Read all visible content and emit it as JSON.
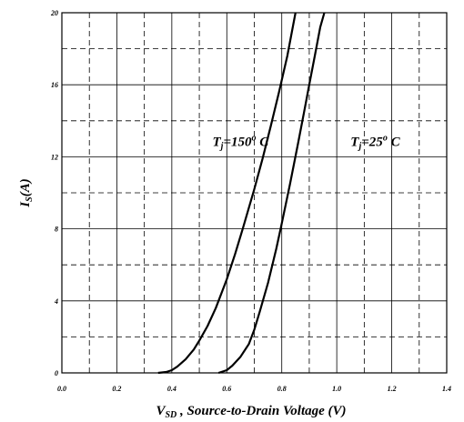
{
  "chart_data": {
    "type": "line",
    "xlabel_main": "V",
    "xlabel_sub": "SD",
    "xlabel_rest": " , Source-to-Drain Voltage (V)",
    "ylabel_main": "I",
    "ylabel_sub": "S",
    "ylabel_rest": "(A)",
    "xlim": [
      0,
      1.4
    ],
    "ylim": [
      0,
      20
    ],
    "x_major_ticks": [
      0,
      0.2,
      0.4,
      0.6,
      0.8,
      1.0,
      1.2,
      1.4
    ],
    "x_tick_labels": [
      "0.0",
      "0.2",
      "0.4",
      "0.6",
      "0.8",
      "1.0",
      "1.2",
      "1.4"
    ],
    "x_minor_ticks": [
      0.1,
      0.3,
      0.5,
      0.7,
      0.9,
      1.1,
      1.3
    ],
    "y_major_ticks": [
      0,
      4,
      8,
      12,
      16,
      20
    ],
    "y_tick_labels": [
      "0",
      "4",
      "8",
      "12",
      "16",
      "20"
    ],
    "y_minor_ticks": [
      2,
      6,
      10,
      14,
      18
    ],
    "grid": true,
    "line_color": "#000000",
    "annotations": [
      {
        "main": "T",
        "sub": "j",
        "rest": "=150",
        "sup": "o",
        "tail": " C",
        "x": 0.65,
        "y": 12.6
      },
      {
        "main": "T",
        "sub": "j",
        "rest": "=25",
        "sup": "o",
        "tail": " C",
        "x": 1.14,
        "y": 12.6
      }
    ],
    "series": [
      {
        "x": [
          0.35,
          0.38,
          0.4,
          0.42,
          0.45,
          0.48,
          0.5,
          0.53,
          0.56,
          0.6,
          0.63,
          0.66,
          0.7,
          0.73,
          0.76,
          0.79,
          0.82,
          0.85
        ],
        "y": [
          0,
          0.05,
          0.15,
          0.35,
          0.75,
          1.3,
          1.8,
          2.6,
          3.6,
          5.2,
          6.6,
          8.1,
          10.2,
          11.9,
          13.7,
          15.6,
          17.6,
          20
        ]
      },
      {
        "x": [
          0.57,
          0.6,
          0.62,
          0.65,
          0.68,
          0.7,
          0.72,
          0.75,
          0.78,
          0.8,
          0.83,
          0.86,
          0.88,
          0.9,
          0.92,
          0.94,
          0.955
        ],
        "y": [
          0,
          0.15,
          0.4,
          0.9,
          1.6,
          2.4,
          3.4,
          5.0,
          6.9,
          8.3,
          10.5,
          12.8,
          14.4,
          16.0,
          17.6,
          19.2,
          20
        ]
      }
    ]
  }
}
